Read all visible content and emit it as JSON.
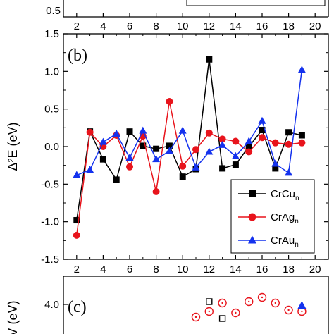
{
  "chart_data": {
    "type": "line",
    "panel_label": "(b)",
    "xlabel": "",
    "ylabel": "Δ²E (eV)",
    "xlim": [
      1,
      21
    ],
    "ylim": [
      -1.5,
      1.5
    ],
    "x_ticks": [
      "2",
      "4",
      "6",
      "8",
      "10",
      "12",
      "14",
      "16",
      "18",
      "20"
    ],
    "y_ticks": [
      "-1.5",
      "-1.0",
      "-0.5",
      "0.0",
      "0.5",
      "1.0",
      "1.5"
    ],
    "grid": false,
    "legend_position": "bottom-right",
    "x": [
      2,
      3,
      4,
      5,
      6,
      7,
      8,
      9,
      10,
      11,
      12,
      13,
      14,
      15,
      16,
      17,
      18,
      19
    ],
    "series": [
      {
        "name": "CrCu",
        "name_sub": "n",
        "color": "#000000",
        "marker": "square",
        "values": [
          -0.98,
          0.2,
          -0.17,
          -0.44,
          0.2,
          0.01,
          -0.03,
          0.01,
          -0.4,
          -0.3,
          1.16,
          -0.29,
          -0.24,
          0.0,
          0.22,
          -0.29,
          0.19,
          0.15
        ]
      },
      {
        "name": "CrAg",
        "name_sub": "n",
        "color": "#e8141c",
        "marker": "circle",
        "values": [
          -1.18,
          0.19,
          0.0,
          0.15,
          -0.27,
          0.14,
          -0.6,
          0.6,
          -0.26,
          -0.04,
          0.18,
          0.1,
          0.07,
          -0.07,
          0.12,
          0.05,
          0.03,
          0.05
        ]
      },
      {
        "name": "CrAu",
        "name_sub": "n",
        "color": "#1432ee",
        "marker": "triangle",
        "values": [
          -0.38,
          -0.31,
          0.06,
          0.17,
          -0.15,
          0.21,
          -0.17,
          -0.06,
          0.21,
          -0.28,
          -0.07,
          0.02,
          -0.13,
          0.07,
          0.34,
          -0.23,
          -0.35,
          1.02
        ]
      }
    ]
  },
  "top_panel": {
    "y_tick": "0.5",
    "x_ticks": [
      "2",
      "4",
      "6",
      "8",
      "10",
      "12",
      "14",
      "16",
      "18",
      "20"
    ]
  },
  "bottom_panel": {
    "panel_label": "(c)",
    "y_tick": "4.0",
    "ylabel_fragment": "V (eV)",
    "points": [
      {
        "x": 12,
        "y": 4.1,
        "series": "CrCu",
        "marker": "open-square",
        "color": "#000000"
      },
      {
        "x": 13,
        "y": 3.5,
        "series": "CrCu",
        "marker": "open-square",
        "color": "#000000"
      },
      {
        "x": 11,
        "y": 3.55,
        "series": "CrAg",
        "marker": "open-circle",
        "color": "#e8141c"
      },
      {
        "x": 12,
        "y": 3.75,
        "series": "CrAg",
        "marker": "open-circle",
        "color": "#e8141c"
      },
      {
        "x": 13,
        "y": 4.05,
        "series": "CrAg",
        "marker": "open-circle",
        "color": "#e8141c"
      },
      {
        "x": 14,
        "y": 3.7,
        "series": "CrAg",
        "marker": "open-circle",
        "color": "#e8141c"
      },
      {
        "x": 15,
        "y": 4.1,
        "series": "CrAg",
        "marker": "open-circle",
        "color": "#e8141c"
      },
      {
        "x": 16,
        "y": 4.25,
        "series": "CrAg",
        "marker": "open-circle",
        "color": "#e8141c"
      },
      {
        "x": 17,
        "y": 4.05,
        "series": "CrAg",
        "marker": "open-circle",
        "color": "#e8141c"
      },
      {
        "x": 18,
        "y": 3.8,
        "series": "CrAg",
        "marker": "open-circle",
        "color": "#e8141c"
      },
      {
        "x": 19,
        "y": 3.75,
        "series": "CrAg",
        "marker": "open-circle",
        "color": "#e8141c"
      },
      {
        "x": 19,
        "y": 3.95,
        "series": "CrAu",
        "marker": "filled-triangle",
        "color": "#1432ee"
      }
    ]
  }
}
